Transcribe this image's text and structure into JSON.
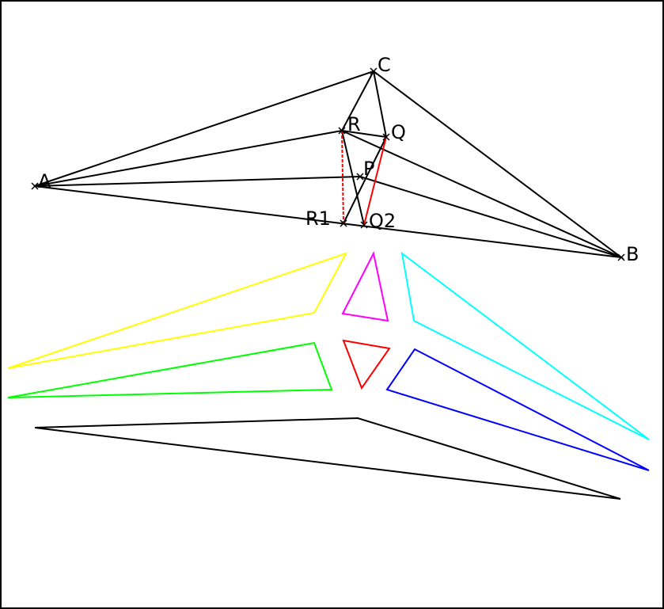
{
  "colors": {
    "frame": "#000000",
    "black": "#000000",
    "red": "#ff0000",
    "yellow": "#ffff00",
    "magenta": "#ff00ff",
    "cyan": "#00ffff",
    "green": "#00ff00",
    "blue": "#0000ff"
  },
  "labels": {
    "A": "A",
    "B": "B",
    "C": "C",
    "P": "P",
    "Q": "Q",
    "R": "R",
    "R1": "R1",
    "Q2": "Q2"
  }
}
